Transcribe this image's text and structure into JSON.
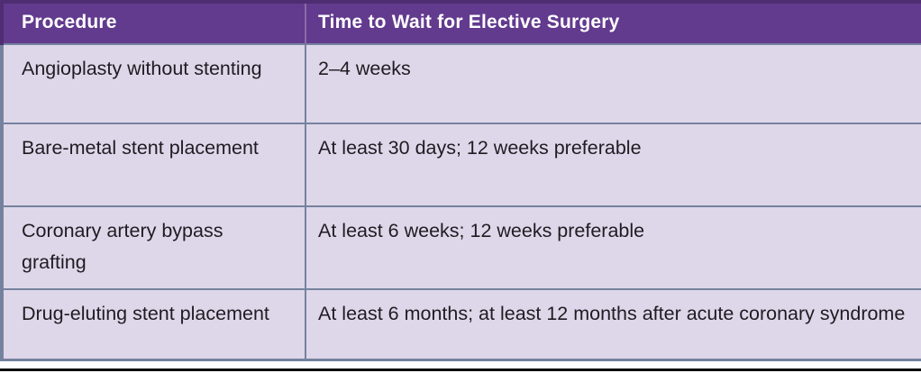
{
  "colors": {
    "header_bg": "#623a8e",
    "header_outer_border": "#4f2d73",
    "header_divider": "#8a6aa8",
    "row_bg": "#ded7e9",
    "grid_border": "#75829f",
    "header_text": "#ffffff",
    "body_text": "#1e1c22",
    "bottom_rule": "#0a0a0a"
  },
  "table": {
    "columns": [
      {
        "label": "Procedure"
      },
      {
        "label": "Time to Wait for Elective Surgery"
      }
    ],
    "rows": [
      {
        "procedure": "Angioplasty without stenting",
        "wait": "2–4 weeks"
      },
      {
        "procedure": "Bare-metal stent placement",
        "wait": "At least 30 days; 12 weeks preferable"
      },
      {
        "procedure": "Coronary artery bypass grafting",
        "wait": "At least 6 weeks; 12 weeks preferable"
      },
      {
        "procedure": "Drug-eluting stent placement",
        "wait": "At least 6 months; at least 12 months after acute coronary syndrome"
      }
    ]
  }
}
